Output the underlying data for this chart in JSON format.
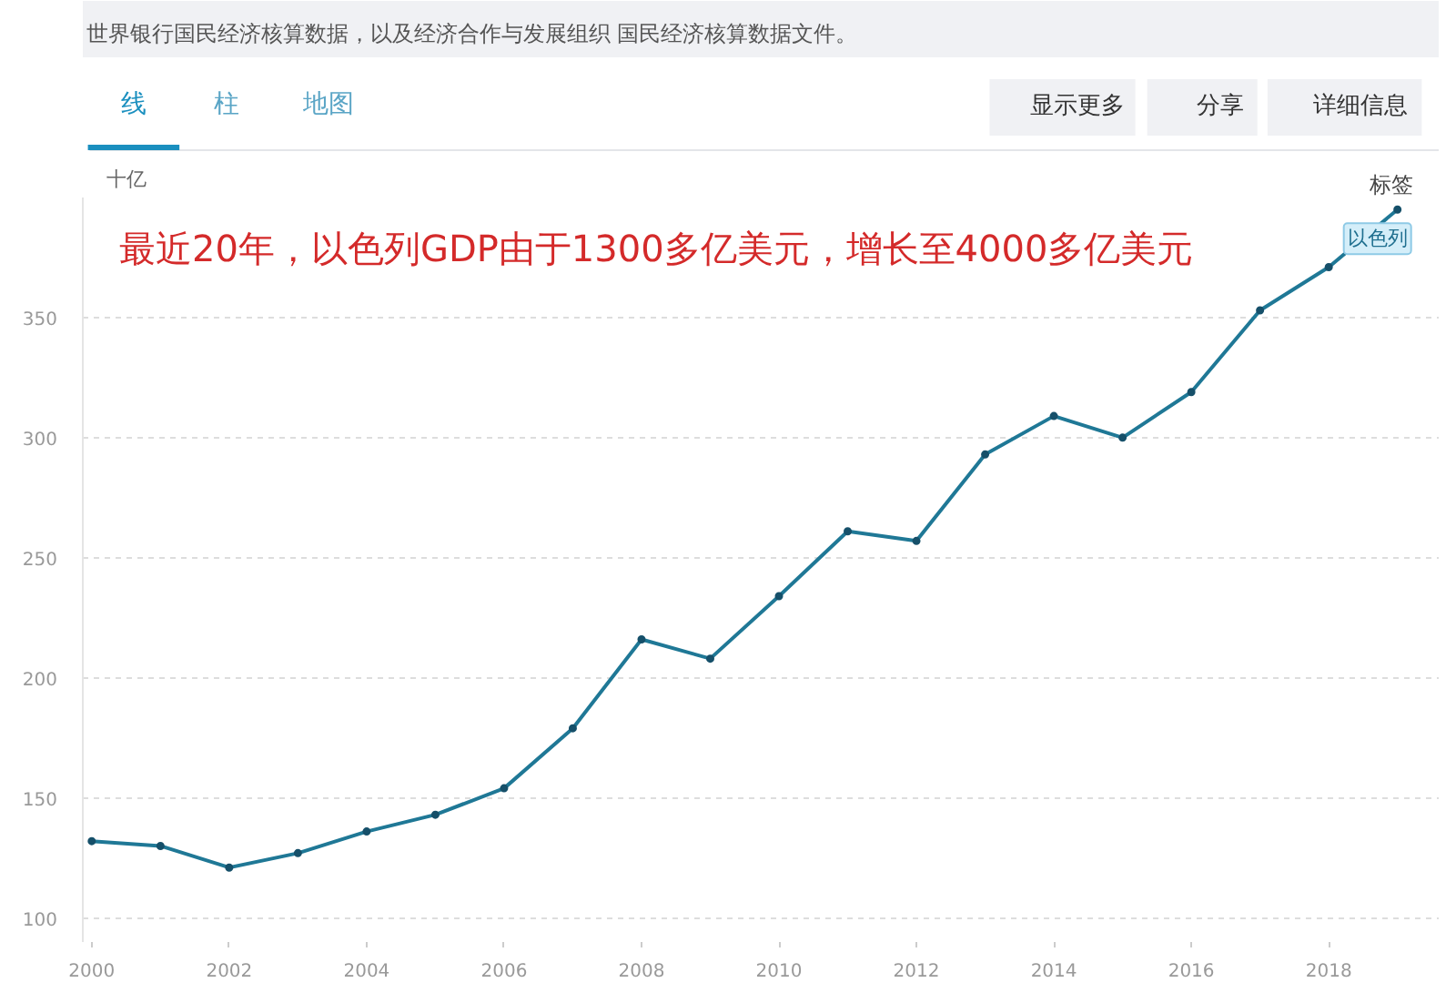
{
  "chart_data": {
    "type": "line",
    "ylabel": "十亿",
    "x": [
      2000,
      2001,
      2002,
      2003,
      2004,
      2005,
      2006,
      2007,
      2008,
      2009,
      2010,
      2011,
      2012,
      2013,
      2014,
      2015,
      2016,
      2017,
      2018,
      2019
    ],
    "series": [
      {
        "name": "以色列",
        "color": "#1f7896",
        "values": [
          132,
          130,
          121,
          127,
          136,
          143,
          154,
          179,
          216,
          208,
          234,
          261,
          257,
          293,
          309,
          300,
          319,
          353,
          371,
          395
        ]
      }
    ],
    "xlim": [
      1999.87,
      2019.6
    ],
    "ylim": [
      90,
      400
    ],
    "xticks": [
      2000,
      2002,
      2004,
      2006,
      2008,
      2010,
      2012,
      2014,
      2016,
      2018
    ],
    "yticks": [
      100,
      150,
      200,
      250,
      300,
      350
    ],
    "grid": "y",
    "legend": false,
    "marker": "circle",
    "line_style": "solid",
    "annotations": [
      "世界银行国民经济核算数据，以及经济合作与发展组织 国民经济核算数据文件。",
      "线",
      "柱",
      "地图",
      "显示更多",
      "分享",
      "详细信息",
      "标签",
      "最近20年，以色列GDP由于1300多亿美元，增长至4000多亿美元"
    ]
  }
}
